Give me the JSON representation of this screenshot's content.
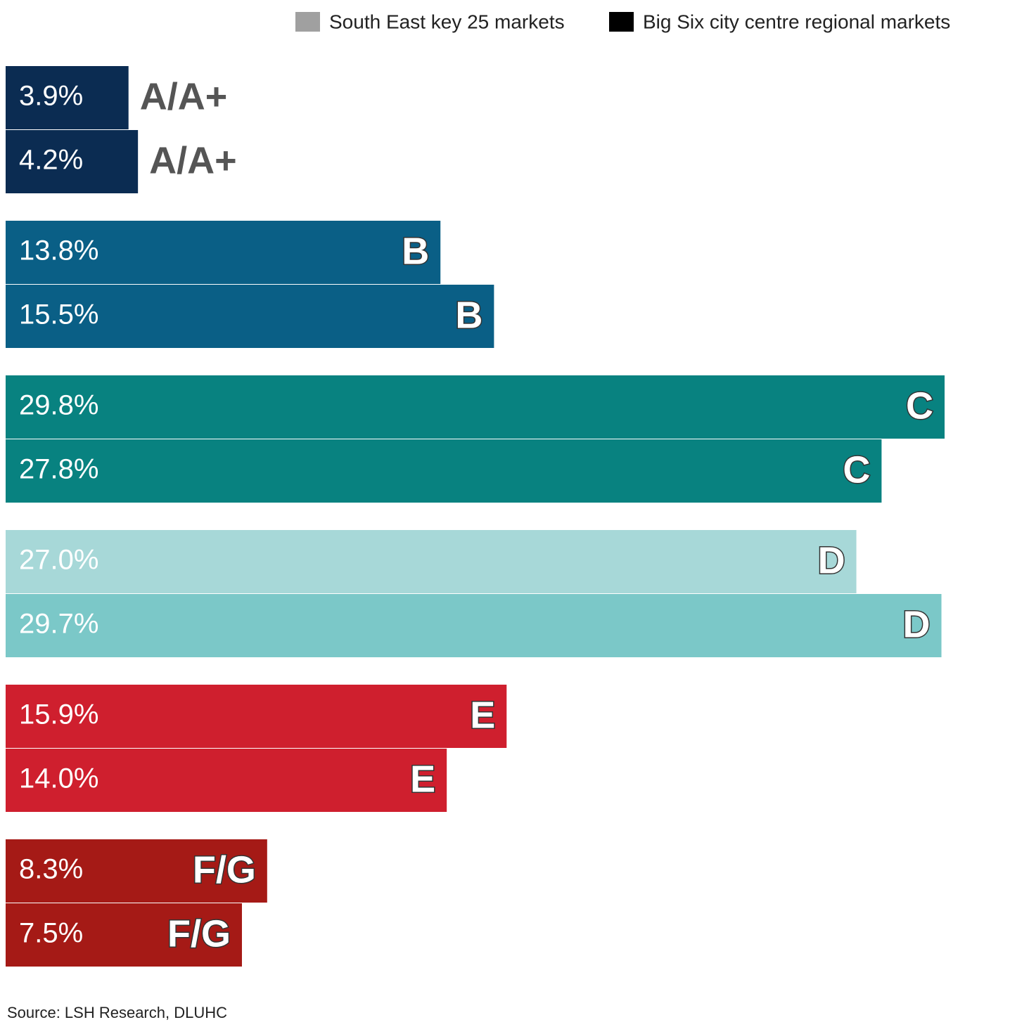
{
  "chart_data": {
    "type": "bar",
    "orientation": "horizontal",
    "categories": [
      "A/A+",
      "B",
      "C",
      "D",
      "E",
      "F/G"
    ],
    "series": [
      {
        "name": "South East key 25 markets",
        "color": "#a0a0a0",
        "values": [
          3.9,
          13.8,
          29.8,
          27.0,
          15.9,
          8.3
        ],
        "value_labels": [
          "3.9%",
          "13.8%",
          "29.8%",
          "27.0%",
          "15.9%",
          "8.3%"
        ],
        "bar_colors": [
          "#0b2c52",
          "#0a5f86",
          "#088280",
          "#a7d8d8",
          "#cf1f2e",
          "#a51a16"
        ]
      },
      {
        "name": "Big Six city centre regional markets",
        "color": "#000000",
        "values": [
          4.2,
          15.5,
          27.8,
          29.7,
          14.0,
          7.5
        ],
        "value_labels": [
          "4.2%",
          "15.5%",
          "27.8%",
          "29.7%",
          "14.0%",
          "7.5%"
        ],
        "bar_colors": [
          "#0b2c52",
          "#0a5f86",
          "#088280",
          "#7bc8c8",
          "#cf1f2e",
          "#a51a16"
        ]
      }
    ],
    "source": "Source: LSH Research, DLUHC"
  }
}
